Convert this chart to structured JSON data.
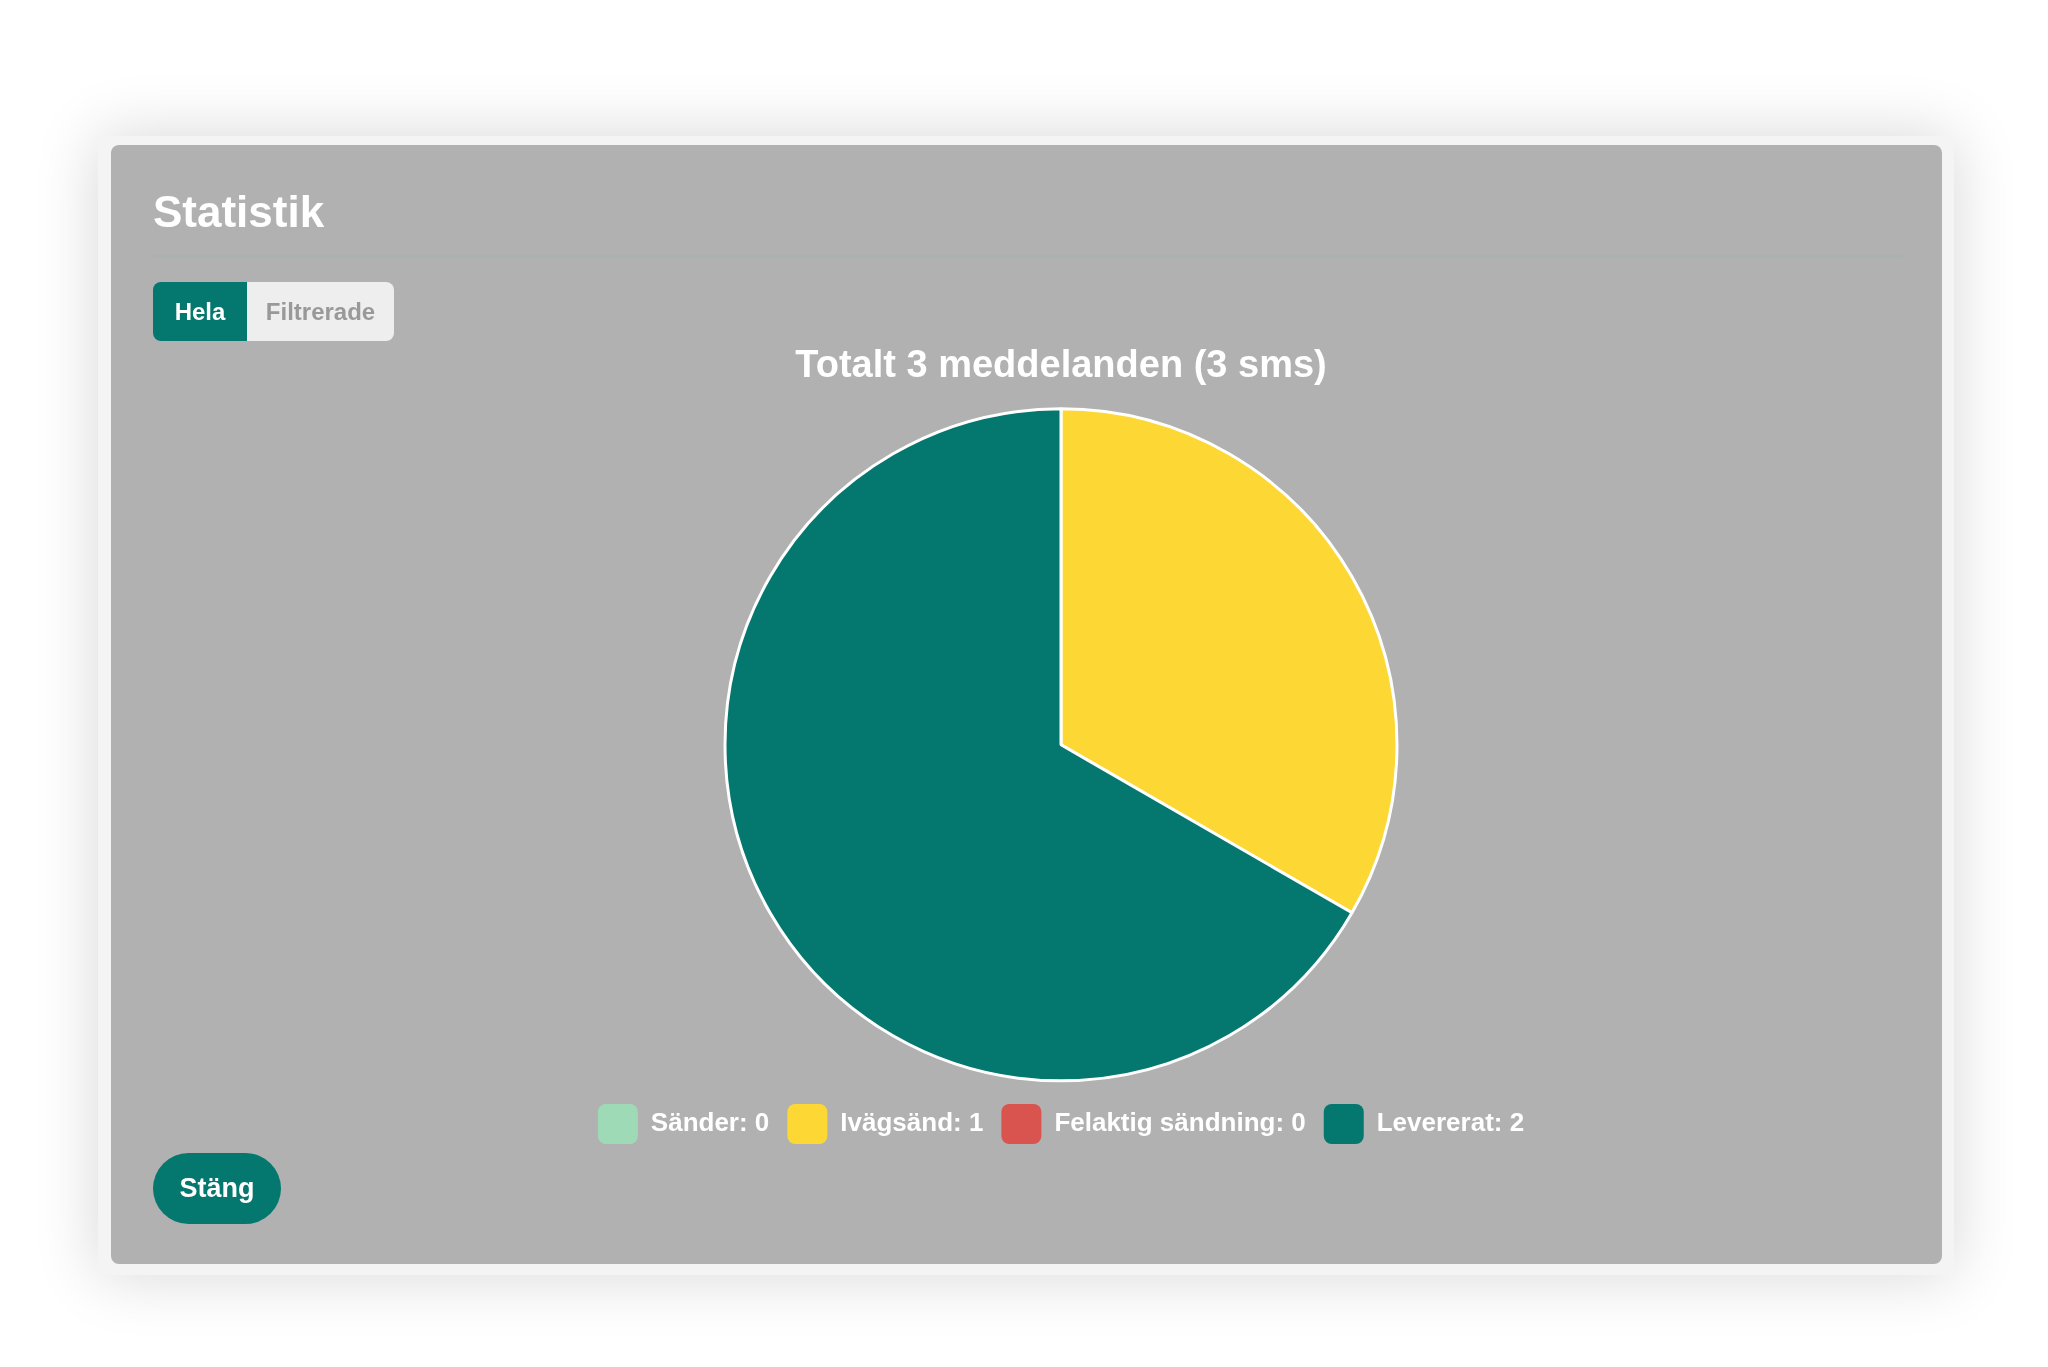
{
  "chart_data": {
    "type": "pie",
    "title": "Statistik",
    "subtitle": "Totalt 3 meddelanden (3 sms)",
    "categories": [
      "Sänder: 0",
      "Ivägsänd: 1",
      "Felaktig sändning: 0",
      "Levererat: 2"
    ],
    "values": [
      0,
      1,
      0,
      2
    ],
    "colors": [
      "#9fdab7",
      "#fdd835",
      "#d9534f",
      "#04786f"
    ],
    "legend": "bottom",
    "annotations": [
      "Hela",
      "Filtrerade",
      "Stäng"
    ]
  }
}
